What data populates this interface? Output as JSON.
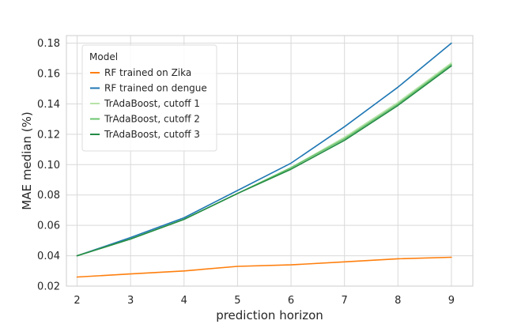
{
  "chart_data": {
    "type": "line",
    "xlabel": "prediction horizon",
    "ylabel": "MAE median (%)",
    "x": [
      2,
      3,
      4,
      5,
      6,
      7,
      8,
      9
    ],
    "xlim": [
      1.8,
      9.4
    ],
    "ylim": [
      0.02,
      0.185
    ],
    "x_ticks": [
      2,
      3,
      4,
      5,
      6,
      7,
      8,
      9
    ],
    "y_ticks": [
      "0.02",
      "0.04",
      "0.06",
      "0.08",
      "0.10",
      "0.12",
      "0.14",
      "0.16",
      "0.18"
    ],
    "grid": true,
    "legend": {
      "title": "Model",
      "placement": "top-left"
    },
    "series": [
      {
        "name": "RF trained on Zika",
        "color": "#ff7f0e",
        "values": [
          0.026,
          0.028,
          0.03,
          0.033,
          0.034,
          0.036,
          0.038,
          0.039
        ]
      },
      {
        "name": "RF trained on dengue",
        "color": "#1f77b4",
        "values": [
          0.04,
          0.052,
          0.065,
          0.083,
          0.101,
          0.125,
          0.151,
          0.18
        ]
      },
      {
        "name": "TrAdaBoost, cutoff 1",
        "color": "#b6e3a8",
        "values": [
          0.04,
          0.051,
          0.064,
          0.081,
          0.098,
          0.118,
          0.141,
          0.167
        ]
      },
      {
        "name": "TrAdaBoost, cutoff 2",
        "color": "#6cc46f",
        "values": [
          0.04,
          0.051,
          0.064,
          0.081,
          0.098,
          0.117,
          0.14,
          0.166
        ]
      },
      {
        "name": "TrAdaBoost, cutoff 3",
        "color": "#238b45",
        "values": [
          0.04,
          0.051,
          0.064,
          0.081,
          0.097,
          0.116,
          0.139,
          0.165
        ]
      }
    ]
  }
}
